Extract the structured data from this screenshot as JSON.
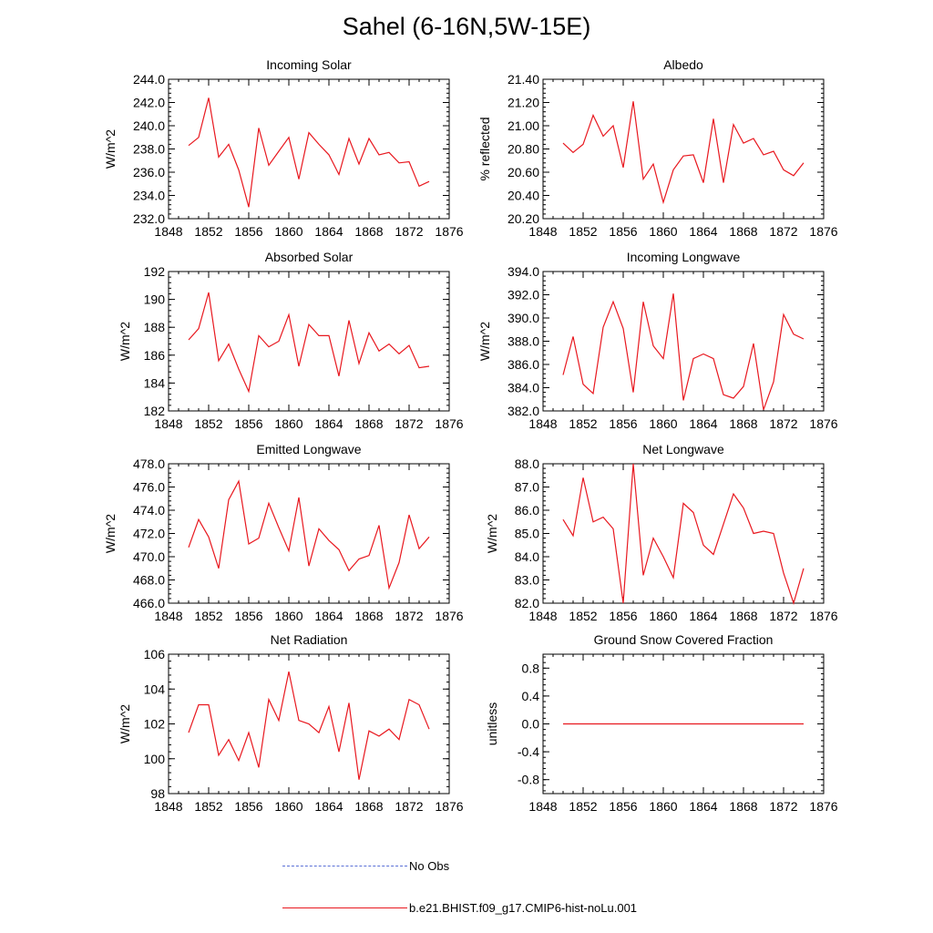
{
  "title": "Sahel (6-16N,5W-15E)",
  "colors": {
    "model": "#e8181f",
    "obs": "#5a6fd6",
    "axis": "#000000"
  },
  "legend": [
    {
      "label": "No Obs",
      "style": "dashed",
      "color": "#5a6fd6"
    },
    {
      "label": "b.e21.BHIST.f09_g17.CMIP6-hist-noLu.001",
      "style": "solid",
      "color": "#e8181f"
    }
  ],
  "chart_data": [
    {
      "type": "line",
      "title": "Incoming Solar",
      "ylabel": "W/m^2",
      "xlim": [
        1848,
        1876
      ],
      "xticks": [
        "1848",
        "1852",
        "1856",
        "1860",
        "1864",
        "1868",
        "1872",
        "1876"
      ],
      "ylim": [
        232,
        244
      ],
      "yticks": [
        "232.0",
        "234.0",
        "236.0",
        "238.0",
        "240.0",
        "242.0",
        "244.0"
      ],
      "x": [
        1850,
        1851,
        1852,
        1853,
        1854,
        1855,
        1856,
        1857,
        1858,
        1859,
        1860,
        1861,
        1862,
        1863,
        1864,
        1865,
        1866,
        1867,
        1868,
        1869,
        1870,
        1871,
        1872,
        1873,
        1874
      ],
      "series": [
        {
          "values": [
            238.3,
            239.0,
            242.4,
            237.3,
            238.4,
            236.2,
            233.0,
            239.8,
            236.6,
            237.8,
            239.0,
            235.4,
            239.4,
            238.4,
            237.5,
            235.8,
            238.9,
            236.7,
            238.9,
            237.5,
            237.7,
            236.8,
            236.9,
            234.8,
            235.2
          ]
        }
      ]
    },
    {
      "type": "line",
      "title": "Albedo",
      "ylabel": "% reflected",
      "xlim": [
        1848,
        1876
      ],
      "xticks": [
        "1848",
        "1852",
        "1856",
        "1860",
        "1864",
        "1868",
        "1872",
        "1876"
      ],
      "ylim": [
        20.2,
        21.4
      ],
      "yticks": [
        "20.20",
        "20.40",
        "20.60",
        "20.80",
        "21.00",
        "21.20",
        "21.40"
      ],
      "x": [
        1850,
        1851,
        1852,
        1853,
        1854,
        1855,
        1856,
        1857,
        1858,
        1859,
        1860,
        1861,
        1862,
        1863,
        1864,
        1865,
        1866,
        1867,
        1868,
        1869,
        1870,
        1871,
        1872,
        1873,
        1874
      ],
      "series": [
        {
          "values": [
            20.85,
            20.77,
            20.84,
            21.09,
            20.91,
            21.0,
            20.64,
            21.21,
            20.54,
            20.67,
            20.34,
            20.62,
            20.74,
            20.75,
            20.51,
            21.06,
            20.51,
            21.01,
            20.85,
            20.89,
            20.75,
            20.78,
            20.62,
            20.57,
            20.68
          ]
        }
      ]
    },
    {
      "type": "line",
      "title": "Absorbed Solar",
      "ylabel": "W/m^2",
      "xlim": [
        1848,
        1876
      ],
      "xticks": [
        "1848",
        "1852",
        "1856",
        "1860",
        "1864",
        "1868",
        "1872",
        "1876"
      ],
      "ylim": [
        182,
        192
      ],
      "yticks": [
        "182",
        "184",
        "186",
        "188",
        "190",
        "192"
      ],
      "x": [
        1850,
        1851,
        1852,
        1853,
        1854,
        1855,
        1856,
        1857,
        1858,
        1859,
        1860,
        1861,
        1862,
        1863,
        1864,
        1865,
        1866,
        1867,
        1868,
        1869,
        1870,
        1871,
        1872,
        1873,
        1874
      ],
      "series": [
        {
          "values": [
            187.1,
            187.9,
            190.5,
            185.6,
            186.8,
            185.0,
            183.4,
            187.4,
            186.6,
            187.0,
            188.9,
            185.2,
            188.2,
            187.4,
            187.4,
            184.5,
            188.5,
            185.4,
            187.6,
            186.3,
            186.8,
            186.1,
            186.7,
            185.1,
            185.2
          ]
        }
      ]
    },
    {
      "type": "line",
      "title": "Incoming Longwave",
      "ylabel": "W/m^2",
      "xlim": [
        1848,
        1876
      ],
      "xticks": [
        "1848",
        "1852",
        "1856",
        "1860",
        "1864",
        "1868",
        "1872",
        "1876"
      ],
      "ylim": [
        382,
        394
      ],
      "yticks": [
        "382.0",
        "384.0",
        "386.0",
        "388.0",
        "390.0",
        "392.0",
        "394.0"
      ],
      "x": [
        1850,
        1851,
        1852,
        1853,
        1854,
        1855,
        1856,
        1857,
        1858,
        1859,
        1860,
        1861,
        1862,
        1863,
        1864,
        1865,
        1866,
        1867,
        1868,
        1869,
        1870,
        1871,
        1872,
        1873,
        1874
      ],
      "series": [
        {
          "values": [
            385.1,
            388.4,
            384.3,
            383.5,
            389.2,
            391.4,
            389.1,
            383.6,
            391.4,
            387.6,
            386.5,
            392.1,
            382.9,
            386.5,
            386.9,
            386.5,
            383.4,
            383.1,
            384.1,
            387.8,
            382.1,
            384.5,
            390.3,
            388.6,
            388.2
          ]
        }
      ]
    },
    {
      "type": "line",
      "title": "Emitted Longwave",
      "ylabel": "W/m^2",
      "xlim": [
        1848,
        1876
      ],
      "xticks": [
        "1848",
        "1852",
        "1856",
        "1860",
        "1864",
        "1868",
        "1872",
        "1876"
      ],
      "ylim": [
        466,
        478
      ],
      "yticks": [
        "466.0",
        "468.0",
        "470.0",
        "472.0",
        "474.0",
        "476.0",
        "478.0"
      ],
      "x": [
        1850,
        1851,
        1852,
        1853,
        1854,
        1855,
        1856,
        1857,
        1858,
        1859,
        1860,
        1861,
        1862,
        1863,
        1864,
        1865,
        1866,
        1867,
        1868,
        1869,
        1870,
        1871,
        1872,
        1873,
        1874
      ],
      "series": [
        {
          "values": [
            470.8,
            473.2,
            471.7,
            469.0,
            474.9,
            476.5,
            471.1,
            471.6,
            474.6,
            472.5,
            470.5,
            475.1,
            469.2,
            472.4,
            471.4,
            470.6,
            468.8,
            469.8,
            470.1,
            472.7,
            467.3,
            469.5,
            473.6,
            470.7,
            471.7
          ]
        }
      ]
    },
    {
      "type": "line",
      "title": "Net Longwave",
      "ylabel": "W/m^2",
      "xlim": [
        1848,
        1876
      ],
      "xticks": [
        "1848",
        "1852",
        "1856",
        "1860",
        "1864",
        "1868",
        "1872",
        "1876"
      ],
      "ylim": [
        82,
        88
      ],
      "yticks": [
        "82.0",
        "83.0",
        "84.0",
        "85.0",
        "86.0",
        "87.0",
        "88.0"
      ],
      "x": [
        1850,
        1851,
        1852,
        1853,
        1854,
        1855,
        1856,
        1857,
        1858,
        1859,
        1860,
        1861,
        1862,
        1863,
        1864,
        1865,
        1866,
        1867,
        1868,
        1869,
        1870,
        1871,
        1872,
        1873,
        1874
      ],
      "series": [
        {
          "values": [
            85.6,
            84.9,
            87.4,
            85.5,
            85.7,
            85.2,
            82.0,
            88.0,
            83.2,
            84.8,
            84.0,
            83.1,
            86.3,
            85.9,
            84.5,
            84.1,
            85.4,
            86.7,
            86.1,
            85.0,
            85.1,
            85.0,
            83.3,
            82.0,
            83.5
          ]
        }
      ]
    },
    {
      "type": "line",
      "title": "Net Radiation",
      "ylabel": "W/m^2",
      "xlim": [
        1848,
        1876
      ],
      "xticks": [
        "1848",
        "1852",
        "1856",
        "1860",
        "1864",
        "1868",
        "1872",
        "1876"
      ],
      "ylim": [
        98,
        106
      ],
      "yticks": [
        "98",
        "100",
        "102",
        "104",
        "106"
      ],
      "x": [
        1850,
        1851,
        1852,
        1853,
        1854,
        1855,
        1856,
        1857,
        1858,
        1859,
        1860,
        1861,
        1862,
        1863,
        1864,
        1865,
        1866,
        1867,
        1868,
        1869,
        1870,
        1871,
        1872,
        1873,
        1874
      ],
      "series": [
        {
          "values": [
            101.5,
            103.1,
            103.1,
            100.2,
            101.1,
            99.9,
            101.5,
            99.5,
            103.4,
            102.2,
            105.0,
            102.2,
            102.0,
            101.5,
            103.0,
            100.4,
            103.2,
            98.8,
            101.6,
            101.3,
            101.7,
            101.1,
            103.4,
            103.1,
            101.7
          ]
        }
      ]
    },
    {
      "type": "line",
      "title": "Ground Snow Covered Fraction",
      "ylabel": "unitless",
      "xlim": [
        1848,
        1876
      ],
      "xticks": [
        "1848",
        "1852",
        "1856",
        "1860",
        "1864",
        "1868",
        "1872",
        "1876"
      ],
      "ylim": [
        -1.0,
        1.0
      ],
      "yticks": [
        "-0.8",
        "-0.4",
        "0.0",
        "0.4",
        "0.8"
      ],
      "x": [
        1850,
        1851,
        1852,
        1853,
        1854,
        1855,
        1856,
        1857,
        1858,
        1859,
        1860,
        1861,
        1862,
        1863,
        1864,
        1865,
        1866,
        1867,
        1868,
        1869,
        1870,
        1871,
        1872,
        1873,
        1874
      ],
      "series": [
        {
          "values": [
            0,
            0,
            0,
            0,
            0,
            0,
            0,
            0,
            0,
            0,
            0,
            0,
            0,
            0,
            0,
            0,
            0,
            0,
            0,
            0,
            0,
            0,
            0,
            0,
            0
          ]
        }
      ]
    }
  ]
}
